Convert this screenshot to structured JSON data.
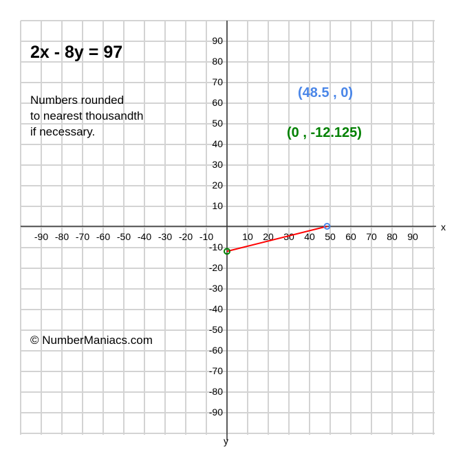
{
  "chart_data": {
    "type": "line",
    "title": "2x - 8y = 97",
    "note": [
      "Numbers rounded",
      "to nearest thousandth",
      "if necessary."
    ],
    "xlabel": "x",
    "ylabel": "y",
    "xlim": [
      -100,
      100
    ],
    "ylim": [
      -100,
      100
    ],
    "grid": true,
    "x_ticks": [
      -90,
      -80,
      -70,
      -60,
      -50,
      -40,
      -30,
      -20,
      -10,
      10,
      20,
      30,
      40,
      50,
      60,
      70,
      80,
      90
    ],
    "y_ticks": [
      90,
      80,
      70,
      60,
      50,
      40,
      30,
      20,
      10,
      -10,
      -20,
      -30,
      -40,
      -50,
      -60,
      -70,
      -80,
      -90
    ],
    "segment": {
      "from": [
        0,
        -12.125
      ],
      "to": [
        48.5,
        0
      ],
      "color": "#ff0000"
    },
    "points": [
      {
        "x": 48.5,
        "y": 0,
        "label": "(48.5 , 0)",
        "color": "#4a86e8"
      },
      {
        "x": 0,
        "y": -12.125,
        "label": "(0 , -12.125)",
        "color": "#008000"
      }
    ],
    "copyright": "© NumberManiacs.com"
  }
}
